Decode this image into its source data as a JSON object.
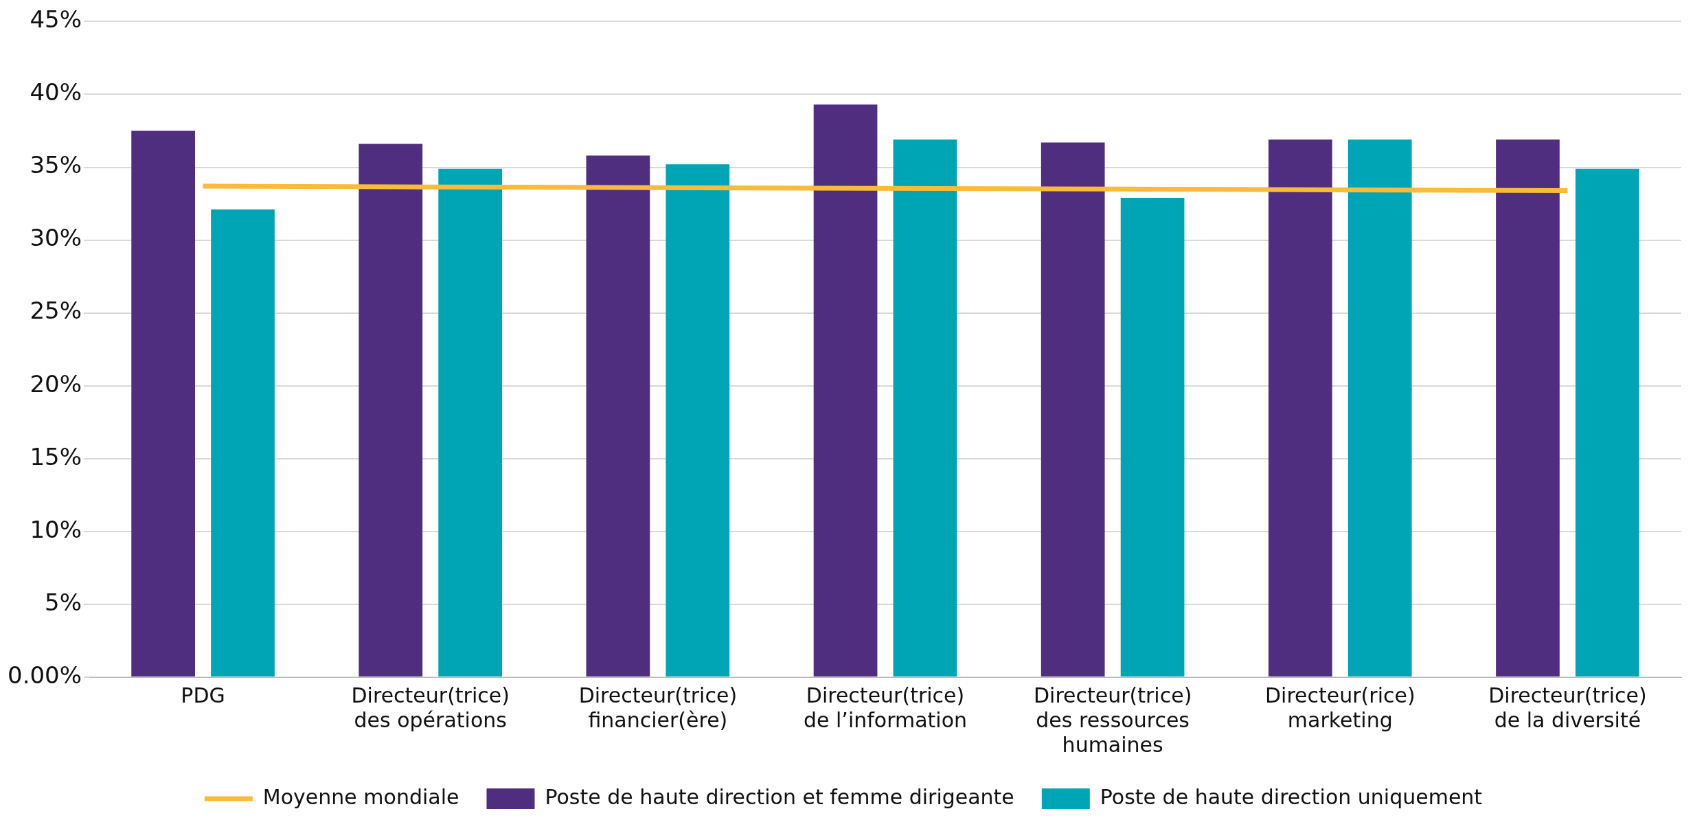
{
  "chart_data": {
    "type": "bar",
    "categories": [
      "PDG",
      "Directeur(trice)\ndes opérations",
      "Directeur(trice)\nfinancier(ère)",
      "Directeur(trice)\nde l’information",
      "Directeur(trice)\ndes ressources\nhumaines",
      "Directeur(rice)\nmarketing",
      "Directeur(trice)\nde la diversité"
    ],
    "series": [
      {
        "name": "Poste de haute direction et femme dirigeante",
        "color": "#4f2d7f",
        "values": [
          37.5,
          36.6,
          35.8,
          39.3,
          36.7,
          36.9,
          36.9
        ]
      },
      {
        "name": "Poste de haute direction uniquement",
        "color": "#00a5b5",
        "values": [
          32.1,
          34.9,
          35.2,
          36.9,
          32.9,
          36.9,
          34.9
        ]
      },
      {
        "name": "Moyenne mondiale",
        "type": "line",
        "color": "#f9bc3a",
        "values": [
          33.7,
          33.65,
          33.6,
          33.55,
          33.5,
          33.45,
          33.4
        ]
      }
    ],
    "ylim": [
      0,
      45
    ],
    "yticks": [
      {
        "value": 0,
        "label": "0.00%"
      },
      {
        "value": 5,
        "label": "5%"
      },
      {
        "value": 10,
        "label": "10%"
      },
      {
        "value": 15,
        "label": "15%"
      },
      {
        "value": 20,
        "label": "20%"
      },
      {
        "value": 25,
        "label": "25%"
      },
      {
        "value": 30,
        "label": "30%"
      },
      {
        "value": 35,
        "label": "35%"
      },
      {
        "value": 40,
        "label": "40%"
      },
      {
        "value": 45,
        "label": "45%"
      }
    ],
    "grid": "y",
    "legend": "bottom",
    "marker": "none"
  }
}
